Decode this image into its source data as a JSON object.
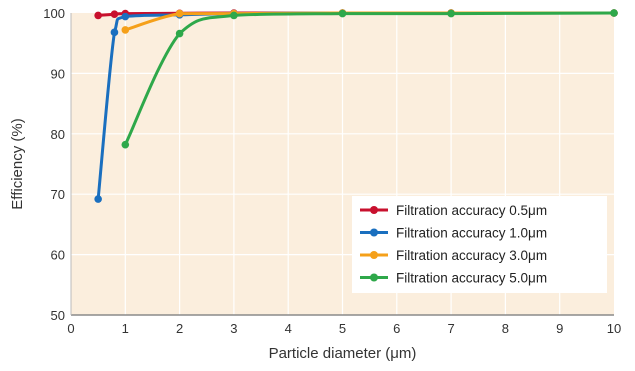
{
  "chart_data": {
    "type": "line",
    "xlabel": "Particle diameter (μm)",
    "ylabel": "Efficiency (%)",
    "xlim": [
      0,
      10
    ],
    "ylim": [
      50,
      100
    ],
    "x_ticks": [
      "0",
      "1",
      "2",
      "3",
      "4",
      "5",
      "6",
      "7",
      "8",
      "9",
      "10"
    ],
    "y_ticks": [
      "50",
      "60",
      "70",
      "80",
      "90",
      "100"
    ],
    "grid": true,
    "legend_position": "bottom-right",
    "background": "#fbeedd",
    "grid_color": "#ffffff",
    "series": [
      {
        "name": "Filtration accuracy 0.5μm",
        "color": "#c8102e",
        "x": [
          0.5,
          0.8,
          1,
          2,
          3,
          5,
          7,
          10
        ],
        "y": [
          99.6,
          99.8,
          99.9,
          99.95,
          100,
          100,
          100,
          100
        ]
      },
      {
        "name": "Filtration accuracy 1.0μm",
        "color": "#1a6fbf",
        "x": [
          0.5,
          0.8,
          1,
          2,
          3,
          5,
          7,
          10
        ],
        "y": [
          69.2,
          96.8,
          99.4,
          99.7,
          99.9,
          100,
          100,
          100
        ]
      },
      {
        "name": "Filtration accuracy 3.0μm",
        "color": "#f5a01a",
        "x": [
          1,
          2,
          3,
          5,
          7,
          10
        ],
        "y": [
          97.2,
          99.9,
          99.9,
          100,
          100,
          100
        ]
      },
      {
        "name": "Filtration accuracy 5.0μm",
        "color": "#2ea84a",
        "x": [
          1,
          2,
          3,
          5,
          7,
          10
        ],
        "y": [
          78.2,
          96.6,
          99.6,
          99.9,
          99.9,
          100
        ]
      }
    ]
  }
}
